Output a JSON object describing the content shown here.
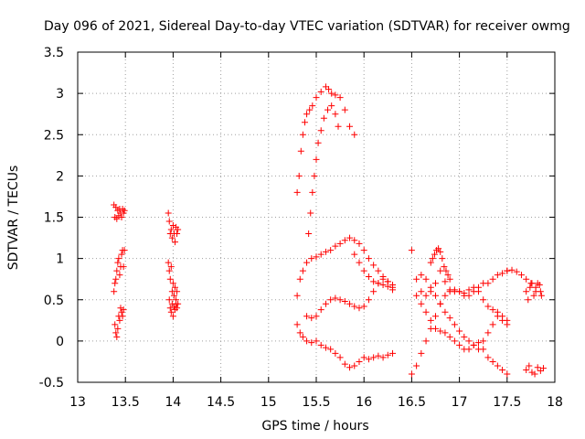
{
  "chart_data": {
    "type": "scatter",
    "title": "Day 096 of 2021, Sidereal Day-to-day VTEC variation (SDTVAR) for receiver owmg",
    "xlabel": "GPS time / hours",
    "ylabel": "SDTVAR / TECUs",
    "xlim": [
      13,
      18
    ],
    "ylim": [
      -0.5,
      3.5
    ],
    "xticks": [
      13,
      13.5,
      14,
      14.5,
      15,
      15.5,
      16,
      16.5,
      17,
      17.5,
      18
    ],
    "xtick_labels": [
      "13",
      "13.5",
      "14",
      "14.5",
      "15",
      "15.5",
      "16",
      "16.5",
      "17",
      "17.5",
      "18"
    ],
    "yticks": [
      -0.5,
      0,
      0.5,
      1,
      1.5,
      2,
      2.5,
      3,
      3.5
    ],
    "ytick_labels": [
      "-0.5",
      "0",
      "0.5",
      "1",
      "1.5",
      "2",
      "2.5",
      "3",
      "3.5"
    ],
    "grid": true,
    "marker": "+",
    "color": "#ff0000",
    "series": [
      {
        "name": "s1",
        "x": [
          13.38,
          13.39,
          13.4,
          13.41,
          13.42,
          13.43,
          13.44,
          13.45,
          13.46,
          13.47,
          13.48,
          13.49
        ],
        "y": [
          1.65,
          1.5,
          1.62,
          1.48,
          1.58,
          1.52,
          1.6,
          1.55,
          1.5,
          1.6,
          1.55,
          1.58
        ]
      },
      {
        "name": "s2",
        "x": [
          13.38,
          13.39,
          13.4,
          13.41,
          13.42,
          13.43,
          13.44,
          13.45,
          13.46,
          13.47,
          13.48,
          13.49
        ],
        "y": [
          0.6,
          0.7,
          0.75,
          0.85,
          0.95,
          1.0,
          0.8,
          0.9,
          1.05,
          1.1,
          0.9,
          1.1
        ]
      },
      {
        "name": "s3",
        "x": [
          13.39,
          13.4,
          13.41,
          13.42,
          13.43,
          13.44,
          13.45,
          13.46,
          13.47,
          13.48
        ],
        "y": [
          0.2,
          0.1,
          0.05,
          0.15,
          0.3,
          0.25,
          0.4,
          0.35,
          0.3,
          0.38
        ]
      },
      {
        "name": "s4",
        "x": [
          13.95,
          13.96,
          13.97,
          13.98,
          13.99,
          14.0,
          14.01,
          14.02,
          14.03,
          14.04,
          14.05
        ],
        "y": [
          1.55,
          1.45,
          1.3,
          1.35,
          1.25,
          1.4,
          1.3,
          1.2,
          1.38,
          1.3,
          1.35
        ]
      },
      {
        "name": "s5",
        "x": [
          13.95,
          13.96,
          13.97,
          13.98,
          13.99,
          14.0,
          14.01,
          14.02,
          14.03,
          14.04,
          14.05
        ],
        "y": [
          0.95,
          0.85,
          0.75,
          0.9,
          0.6,
          0.7,
          0.55,
          0.65,
          0.5,
          0.6,
          0.45
        ]
      },
      {
        "name": "s6",
        "x": [
          13.96,
          13.97,
          13.98,
          13.99,
          14.0,
          14.01,
          14.02,
          14.03,
          14.04
        ],
        "y": [
          0.5,
          0.4,
          0.35,
          0.45,
          0.3,
          0.42,
          0.38,
          0.45,
          0.4
        ]
      },
      {
        "name": "s7",
        "x": [
          15.3,
          15.32,
          15.34,
          15.36,
          15.38,
          15.4,
          15.43,
          15.46,
          15.5,
          15.55,
          15.6,
          15.63,
          15.66,
          15.7,
          15.75,
          15.8,
          15.85,
          15.9
        ],
        "y": [
          1.8,
          2.0,
          2.3,
          2.5,
          2.65,
          2.75,
          2.8,
          2.85,
          2.95,
          3.02,
          3.08,
          3.05,
          3.0,
          2.98,
          2.95,
          2.8,
          2.6,
          2.5
        ]
      },
      {
        "name": "s8",
        "x": [
          15.42,
          15.44,
          15.46,
          15.48,
          15.5,
          15.52,
          15.55,
          15.58,
          15.62,
          15.66,
          15.7,
          15.73
        ],
        "y": [
          1.3,
          1.55,
          1.8,
          2.0,
          2.2,
          2.4,
          2.55,
          2.7,
          2.8,
          2.85,
          2.75,
          2.6
        ]
      },
      {
        "name": "s9",
        "x": [
          15.3,
          15.33,
          15.36,
          15.4,
          15.45,
          15.5,
          15.55,
          15.6,
          15.65,
          15.7,
          15.75,
          15.8,
          15.85,
          15.9,
          15.95,
          16.0,
          16.05,
          16.1,
          16.15,
          16.2,
          16.25,
          16.3
        ],
        "y": [
          0.55,
          0.75,
          0.85,
          0.95,
          1.0,
          1.02,
          1.05,
          1.08,
          1.1,
          1.15,
          1.18,
          1.22,
          1.25,
          1.22,
          1.18,
          1.1,
          1.0,
          0.92,
          0.85,
          0.78,
          0.72,
          0.68
        ]
      },
      {
        "name": "s10",
        "x": [
          15.4,
          15.45,
          15.5,
          15.55,
          15.6,
          15.65,
          15.7,
          15.75,
          15.8,
          15.85,
          15.9,
          15.95,
          16.0,
          16.05,
          16.1,
          16.15,
          16.2,
          16.25,
          16.3
        ],
        "y": [
          0.3,
          0.28,
          0.3,
          0.38,
          0.45,
          0.5,
          0.52,
          0.5,
          0.48,
          0.45,
          0.42,
          0.4,
          0.42,
          0.5,
          0.6,
          0.7,
          0.75,
          0.72,
          0.62
        ]
      },
      {
        "name": "s11",
        "x": [
          15.3,
          15.33,
          15.36,
          15.4,
          15.45,
          15.5,
          15.55,
          15.6,
          15.65,
          15.7,
          15.75,
          15.8,
          15.85,
          15.9,
          15.95,
          16.0,
          16.05,
          16.1,
          16.15,
          16.2,
          16.25,
          16.3
        ],
        "y": [
          0.2,
          0.1,
          0.05,
          0.0,
          -0.02,
          0.0,
          -0.05,
          -0.08,
          -0.1,
          -0.15,
          -0.2,
          -0.28,
          -0.32,
          -0.3,
          -0.25,
          -0.2,
          -0.22,
          -0.2,
          -0.18,
          -0.2,
          -0.17,
          -0.15
        ]
      },
      {
        "name": "s12",
        "x": [
          15.9,
          15.95,
          16.0,
          16.05,
          16.1,
          16.15,
          16.2,
          16.25,
          16.3
        ],
        "y": [
          1.05,
          0.95,
          0.85,
          0.78,
          0.72,
          0.7,
          0.68,
          0.66,
          0.65
        ]
      },
      {
        "name": "s13",
        "x": [
          16.5,
          16.55,
          16.6,
          16.65,
          16.7,
          16.75,
          16.8,
          16.85,
          16.9,
          16.95,
          17.0,
          17.05,
          17.1,
          17.15,
          17.2,
          17.25,
          17.3,
          17.35,
          17.4,
          17.45,
          17.5
        ],
        "y": [
          1.1,
          0.75,
          0.6,
          0.55,
          0.6,
          0.7,
          0.85,
          0.72,
          0.62,
          0.6,
          0.6,
          0.58,
          0.62,
          0.65,
          0.6,
          0.5,
          0.42,
          0.38,
          0.35,
          0.3,
          0.25
        ]
      },
      {
        "name": "s14",
        "x": [
          16.5,
          16.55,
          16.6,
          16.65,
          16.7,
          16.75,
          16.8,
          16.85,
          16.9,
          16.95,
          17.0,
          17.05,
          17.1,
          17.15,
          17.2,
          17.25,
          17.3,
          17.35,
          17.4,
          17.45,
          17.5
        ],
        "y": [
          -0.4,
          -0.3,
          -0.15,
          0.0,
          0.15,
          0.3,
          0.45,
          0.55,
          0.6,
          0.62,
          0.6,
          0.55,
          0.55,
          0.6,
          0.65,
          0.7,
          0.7,
          0.75,
          0.8,
          0.82,
          0.85
        ]
      },
      {
        "name": "s15",
        "x": [
          16.55,
          16.6,
          16.65,
          16.7,
          16.75,
          16.8,
          16.85,
          16.9,
          16.95,
          17.0,
          17.05,
          17.1,
          17.15,
          17.2,
          17.25,
          17.3,
          17.35,
          17.4,
          17.45,
          17.5
        ],
        "y": [
          0.55,
          0.45,
          0.35,
          0.25,
          0.15,
          0.12,
          0.1,
          0.05,
          0.0,
          -0.05,
          -0.1,
          -0.1,
          -0.05,
          -0.02,
          -0.1,
          -0.2,
          -0.25,
          -0.3,
          -0.35,
          -0.4
        ]
      },
      {
        "name": "s16",
        "x": [
          16.6,
          16.65,
          16.7,
          16.75,
          16.8,
          16.85,
          16.9,
          16.95,
          17.0,
          17.05,
          17.1,
          17.15,
          17.2,
          17.25,
          17.3,
          17.35,
          17.4,
          17.45,
          17.5
        ],
        "y": [
          0.8,
          0.75,
          0.65,
          0.55,
          0.45,
          0.35,
          0.28,
          0.2,
          0.12,
          0.05,
          0.0,
          -0.05,
          -0.1,
          0.0,
          0.1,
          0.2,
          0.3,
          0.25,
          0.2
        ]
      },
      {
        "name": "s17",
        "x": [
          16.7,
          16.72,
          16.74,
          16.76,
          16.78,
          16.8,
          16.82,
          16.84,
          16.86,
          16.88,
          16.9
        ],
        "y": [
          0.95,
          1.0,
          1.05,
          1.1,
          1.12,
          1.08,
          1.0,
          0.9,
          0.85,
          0.8,
          0.75
        ]
      },
      {
        "name": "s18",
        "x": [
          17.5,
          17.55,
          17.6,
          17.65,
          17.7,
          17.75,
          17.8,
          17.85
        ],
        "y": [
          0.85,
          0.86,
          0.84,
          0.8,
          0.75,
          0.7,
          0.65,
          0.6
        ]
      },
      {
        "name": "s19",
        "x": [
          17.7,
          17.72,
          17.74,
          17.76,
          17.78,
          17.8,
          17.82,
          17.84,
          17.86
        ],
        "y": [
          0.6,
          0.5,
          0.65,
          0.7,
          0.55,
          0.6,
          0.7,
          0.68,
          0.55
        ]
      },
      {
        "name": "s20",
        "x": [
          17.7,
          17.73,
          17.76,
          17.79,
          17.82,
          17.85,
          17.88
        ],
        "y": [
          -0.35,
          -0.3,
          -0.38,
          -0.4,
          -0.32,
          -0.36,
          -0.33
        ]
      }
    ]
  }
}
